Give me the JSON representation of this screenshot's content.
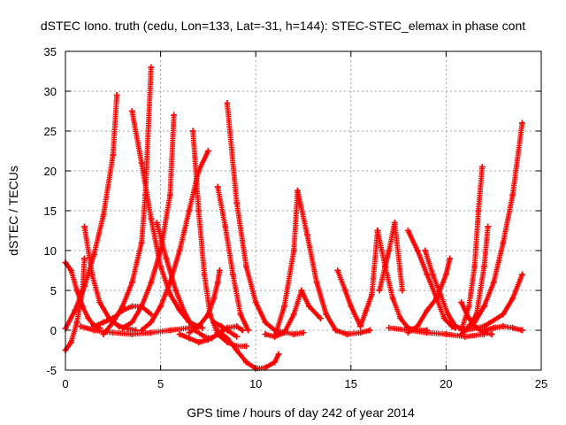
{
  "chart_data": {
    "type": "scatter",
    "title": "dSTEC Iono. truth (cedu, Lon=133, Lat=-31, h=144): STEC-STEC_elemax in phase cont",
    "xlabel": "GPS time / hours of day 242 of year 2014",
    "ylabel": "dSTEC  / TECUs",
    "xlim": [
      0,
      25
    ],
    "ylim": [
      -5,
      35
    ],
    "xticks": [
      0,
      5,
      10,
      15,
      20,
      25
    ],
    "yticks": [
      -5,
      0,
      5,
      10,
      15,
      20,
      25,
      30,
      35
    ],
    "grid": true,
    "marker": "plus",
    "color": "#ff0000",
    "legend": "none",
    "series": [
      {
        "x": [
          0.0,
          0.5,
          1.0,
          1.5,
          2.0,
          2.5,
          2.7
        ],
        "y": [
          0.2,
          2.5,
          5.5,
          9.5,
          14.5,
          22.0,
          29.5
        ]
      },
      {
        "x": [
          0.0,
          0.3,
          0.6,
          0.9,
          1.2,
          1.5,
          1.8
        ],
        "y": [
          8.5,
          7.5,
          5.0,
          3.0,
          1.5,
          0.6,
          0.3
        ]
      },
      {
        "x": [
          0.0,
          0.3,
          0.6,
          0.9,
          1.0
        ],
        "y": [
          -2.5,
          -1.5,
          1.0,
          5.0,
          9.0
        ]
      },
      {
        "x": [
          1.0,
          1.4,
          1.8,
          2.3,
          2.8,
          3.3,
          3.7
        ],
        "y": [
          13.0,
          7.0,
          3.5,
          1.5,
          0.5,
          0.2,
          0.0
        ]
      },
      {
        "x": [
          1.5,
          2.0,
          2.5,
          3.0,
          3.5,
          4.0,
          4.5
        ],
        "y": [
          0.5,
          1.0,
          1.5,
          2.5,
          3.0,
          3.0,
          2.0
        ]
      },
      {
        "x": [
          0.8,
          1.5,
          2.5,
          3.5,
          4.5,
          5.5,
          6.5
        ],
        "y": [
          0.5,
          0.0,
          -0.3,
          -0.5,
          -0.3,
          0.0,
          0.3
        ]
      },
      {
        "x": [
          2.0,
          2.5,
          3.0,
          3.5,
          4.0,
          4.2,
          4.5
        ],
        "y": [
          -0.5,
          1.0,
          3.0,
          6.0,
          11.0,
          17.0,
          33.0
        ]
      },
      {
        "x": [
          3.5,
          4.0,
          4.5,
          5.0,
          5.5,
          6.0,
          6.5,
          7.2
        ],
        "y": [
          27.5,
          21.0,
          14.0,
          8.0,
          4.5,
          2.5,
          1.0,
          0.3
        ]
      },
      {
        "x": [
          3.0,
          3.5,
          4.0,
          4.5,
          5.0,
          5.5,
          5.7
        ],
        "y": [
          0.3,
          1.0,
          3.0,
          6.0,
          10.0,
          17.0,
          27.0
        ]
      },
      {
        "x": [
          4.0,
          4.5,
          5.0,
          5.5,
          6.0,
          6.5,
          7.0,
          7.5
        ],
        "y": [
          0.0,
          1.0,
          3.0,
          6.0,
          10.0,
          15.0,
          20.0,
          22.5
        ]
      },
      {
        "x": [
          4.8,
          5.3,
          5.8,
          6.3,
          6.8,
          7.3,
          7.7
        ],
        "y": [
          13.5,
          9.0,
          5.0,
          2.0,
          0.0,
          -0.8,
          -1.0
        ]
      },
      {
        "x": [
          6.7,
          7.0,
          7.3,
          7.6,
          8.0,
          8.5,
          9.0,
          9.5
        ],
        "y": [
          25.0,
          15.0,
          7.0,
          2.0,
          -0.5,
          -1.5,
          -2.0,
          -2.0
        ]
      },
      {
        "x": [
          6.0,
          6.5,
          7.0,
          7.5,
          8.0,
          8.5,
          9.0,
          9.3
        ],
        "y": [
          -0.5,
          -1.0,
          -1.5,
          -1.2,
          -0.5,
          0.3,
          0.5,
          0.0
        ]
      },
      {
        "x": [
          6.5,
          7.0,
          7.5,
          7.8,
          8.0,
          8.1
        ],
        "y": [
          -0.3,
          0.5,
          2.0,
          4.0,
          6.0,
          7.5
        ]
      },
      {
        "x": [
          7.8,
          8.2,
          8.5,
          9.0
        ],
        "y": [
          1.0,
          0.5,
          0.0,
          -0.8
        ]
      },
      {
        "x": [
          8.0,
          8.5,
          9.0,
          9.5,
          10.0,
          10.5,
          11.0,
          11.2
        ],
        "y": [
          0.0,
          -1.0,
          -2.5,
          -4.0,
          -4.8,
          -4.7,
          -4.0,
          -3.0
        ]
      },
      {
        "x": [
          8.0,
          8.4,
          8.8,
          9.2,
          9.6
        ],
        "y": [
          18.0,
          13.0,
          7.0,
          2.0,
          0.0
        ]
      },
      {
        "x": [
          8.5,
          9.0,
          9.5,
          10.0,
          10.5,
          11.0,
          12.0,
          12.5
        ],
        "y": [
          28.5,
          16.0,
          8.0,
          3.5,
          1.0,
          0.0,
          -0.5,
          -0.3
        ]
      },
      {
        "x": [
          10.5,
          11.0,
          11.5,
          12.0,
          12.4,
          12.8,
          13.4
        ],
        "y": [
          -0.5,
          -0.8,
          -0.3,
          2.0,
          5.0,
          3.0,
          1.5
        ]
      },
      {
        "x": [
          11.0,
          11.5,
          12.0,
          12.2
        ],
        "y": [
          -0.8,
          3.0,
          10.0,
          17.5
        ]
      },
      {
        "x": [
          12.2,
          12.7,
          13.2,
          13.7,
          14.2,
          14.8,
          15.5,
          16.0
        ],
        "y": [
          17.5,
          12.0,
          6.0,
          2.0,
          0.0,
          -0.5,
          -0.3,
          0.0
        ]
      },
      {
        "x": [
          14.3,
          14.7,
          15.0,
          15.5
        ],
        "y": [
          7.5,
          5.0,
          3.0,
          0.5
        ]
      },
      {
        "x": [
          15.5,
          15.8,
          16.1,
          16.4
        ],
        "y": [
          0.5,
          2.5,
          4.5,
          12.5
        ]
      },
      {
        "x": [
          16.4,
          16.8,
          17.2,
          17.6,
          18.0,
          18.5,
          19.0
        ],
        "y": [
          12.5,
          8.0,
          4.0,
          1.5,
          0.3,
          0.0,
          0.0
        ]
      },
      {
        "x": [
          16.5,
          16.8,
          17.0,
          17.3,
          17.7
        ],
        "y": [
          5.0,
          8.0,
          10.0,
          13.5,
          5.0
        ]
      },
      {
        "x": [
          18.0,
          18.5,
          19.0,
          19.5,
          19.9,
          20.3,
          20.5
        ],
        "y": [
          12.5,
          10.0,
          7.0,
          4.0,
          1.5,
          0.5,
          0.3
        ]
      },
      {
        "x": [
          18.0,
          18.5,
          19.0,
          19.5,
          20.0,
          20.2
        ],
        "y": [
          -0.3,
          0.5,
          2.5,
          4.0,
          7.0,
          9.0
        ]
      },
      {
        "x": [
          18.9,
          19.3,
          19.7,
          20.1,
          20.5,
          21.0
        ],
        "y": [
          10.0,
          7.0,
          4.5,
          2.0,
          0.5,
          0.0
        ]
      },
      {
        "x": [
          17.0,
          18.0,
          19.0,
          20.0,
          21.0,
          22.0
        ],
        "y": [
          0.3,
          0.0,
          -0.3,
          -0.5,
          -0.8,
          -0.5
        ]
      },
      {
        "x": [
          20.8,
          21.2,
          21.6,
          22.0,
          22.4
        ],
        "y": [
          3.5,
          1.5,
          0.3,
          -0.3,
          -0.5
        ]
      },
      {
        "x": [
          20.8,
          21.2,
          21.5,
          21.7,
          21.9
        ],
        "y": [
          0.0,
          3.0,
          8.0,
          15.0,
          20.5
        ]
      },
      {
        "x": [
          20.8,
          21.2,
          21.6,
          22.0,
          22.2
        ],
        "y": [
          -0.5,
          0.5,
          2.0,
          8.0,
          13.0
        ]
      },
      {
        "x": [
          21.0,
          22.0,
          23.0,
          23.5,
          24.0
        ],
        "y": [
          0.0,
          0.5,
          2.0,
          4.0,
          7.0
        ]
      },
      {
        "x": [
          21.0,
          21.5,
          22.0,
          22.5,
          23.0,
          23.5,
          24.0
        ],
        "y": [
          0.0,
          1.0,
          3.0,
          6.0,
          11.0,
          17.0,
          26.0
        ]
      },
      {
        "x": [
          22.0,
          22.5,
          23.0,
          23.5,
          24.0
        ],
        "y": [
          0.0,
          0.3,
          0.5,
          0.3,
          0.0
        ]
      }
    ]
  }
}
